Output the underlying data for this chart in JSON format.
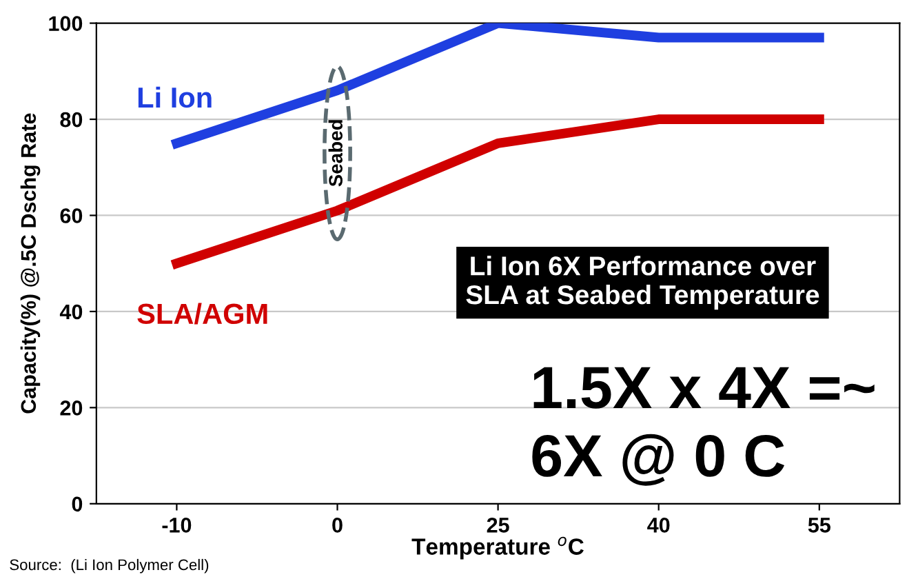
{
  "chart_data": {
    "type": "line",
    "xlabel": "Temperature $^{o}$C",
    "ylabel": "Capacity(%) @.5C Dschg Rate",
    "categories": [
      "-10",
      "0",
      "25",
      "40",
      "55"
    ],
    "series": [
      {
        "name": "Li Ion",
        "color": "#1f3fe0",
        "values": [
          75,
          86,
          100,
          97,
          97
        ]
      },
      {
        "name": "SLA/AGM",
        "color": "#d00000",
        "values": [
          50,
          61,
          75,
          80,
          80
        ]
      }
    ],
    "ylim": [
      0,
      100
    ],
    "yticks": [
      0,
      20,
      40,
      60,
      80,
      100
    ],
    "grid": "y",
    "legend": false,
    "marker": "none",
    "line_style": "solid",
    "annotations": [
      "Seabed",
      "Li Ion 6X Performance over\nSLA at Seabed Temperature",
      "1.5X x 4X =~\n6X @ 0 C",
      "Source:  (Li Ion Polymer Cell)"
    ]
  }
}
